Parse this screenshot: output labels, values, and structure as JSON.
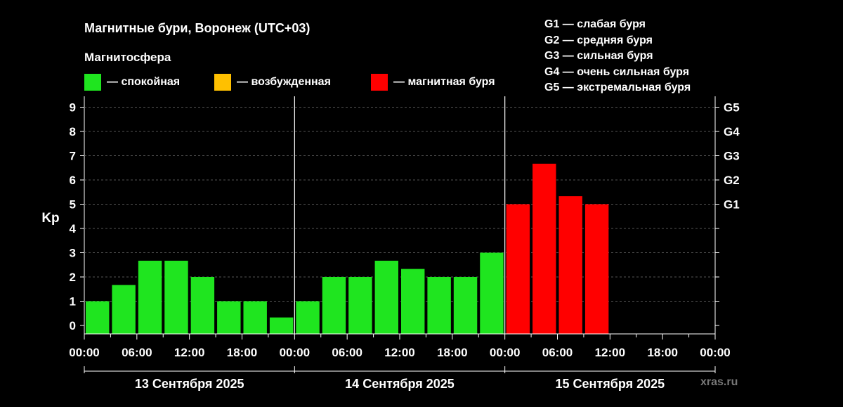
{
  "header": {
    "title": "Магнитные бури, Воронеж (UTC+03)",
    "subtitle": "Магнитосфера",
    "legend": [
      {
        "label": "— спокойная",
        "color": "#1fe51f"
      },
      {
        "label": "— возбужденная",
        "color": "#ffc000"
      },
      {
        "label": "— магнитная буря",
        "color": "#ff0000"
      }
    ],
    "g_scale": [
      "G1 — слабая буря",
      "G2 — средняя буря",
      "G3 — сильная буря",
      "G4 — очень сильная буря",
      "G5 — экстремальная буря"
    ]
  },
  "watermark": "xras.ru",
  "chart_data": {
    "type": "bar",
    "ylabel": "Kp",
    "ylim": [
      0,
      9
    ],
    "yticks": [
      "0",
      "1",
      "2",
      "3",
      "4",
      "5",
      "6",
      "7",
      "8",
      "9"
    ],
    "right_ticks": [
      {
        "label": "G1",
        "value": 5
      },
      {
        "label": "G2",
        "value": 6
      },
      {
        "label": "G3",
        "value": 7
      },
      {
        "label": "G4",
        "value": 8
      },
      {
        "label": "G5",
        "value": 9
      }
    ],
    "xtick_labels": [
      "00:00",
      "06:00",
      "12:00",
      "18:00",
      "00:00",
      "06:00",
      "12:00",
      "18:00",
      "00:00",
      "06:00",
      "12:00",
      "18:00",
      "00:00"
    ],
    "days": [
      "13 Сентября 2025",
      "14 Сентября 2025",
      "15 Сентября 2025"
    ],
    "grid": true,
    "bar_interval_hours": 3,
    "colors": {
      "quiet": "#1fe51f",
      "active": "#ffc000",
      "storm": "#ff0000"
    },
    "values": [
      1.0,
      1.67,
      2.67,
      2.67,
      2.0,
      1.0,
      1.0,
      0.33,
      1.0,
      2.0,
      2.0,
      2.67,
      2.33,
      2.0,
      2.0,
      3.0,
      5.0,
      6.67,
      5.33,
      5.0
    ]
  }
}
